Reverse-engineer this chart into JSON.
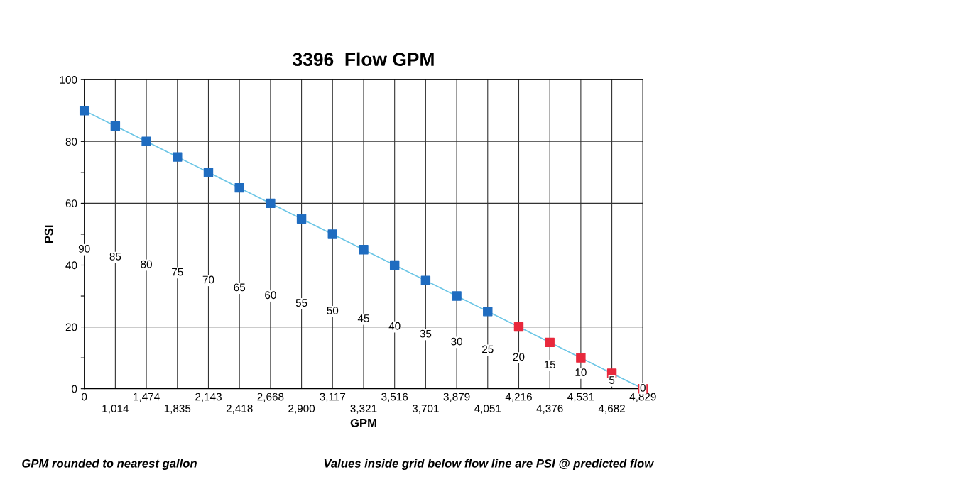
{
  "chart_data": {
    "type": "line",
    "title": "3396  Flow GPM",
    "xlabel": "GPM",
    "ylabel": "PSI",
    "categories": [
      "0",
      "1,014",
      "1,474",
      "1,835",
      "2,143",
      "2,418",
      "2,668",
      "2,900",
      "3,117",
      "3,321",
      "3,516",
      "3,701",
      "3,879",
      "4,051",
      "4,216",
      "4,376",
      "4,531",
      "4,682",
      "4,829"
    ],
    "series": [
      {
        "color": "#6cc6e6",
        "values": [
          90,
          85,
          80,
          75,
          70,
          65,
          60,
          55,
          50,
          45,
          40,
          35,
          30,
          25,
          20,
          15,
          10,
          5,
          0
        ],
        "colors": [
          "#1f6cc0",
          "#1f6cc0",
          "#1f6cc0",
          "#1f6cc0",
          "#1f6cc0",
          "#1f6cc0",
          "#1f6cc0",
          "#1f6cc0",
          "#1f6cc0",
          "#1f6cc0",
          "#1f6cc0",
          "#1f6cc0",
          "#1f6cc0",
          "#1f6cc0",
          "#e8283c",
          "#e8283c",
          "#e8283c",
          "#e8283c",
          "#e8283c"
        ]
      }
    ],
    "ylim": [
      0,
      100
    ],
    "yticks": [
      0,
      {
        "value": 10,
        "label": null
      },
      20,
      {
        "value": 30,
        "label": null
      },
      40,
      {
        "value": 50,
        "label": null
      },
      60,
      {
        "value": 70,
        "label": null
      },
      80,
      {
        "value": 90,
        "label": null
      },
      100
    ],
    "grid": true,
    "marker": "square",
    "line_style": "solid",
    "annotations": [
      "GPM rounded to nearest gallon",
      "Values inside grid below flow line are PSI @ predicted flow",
      {
        "text": "90",
        "x": "0",
        "y": 45
      },
      {
        "text": "85",
        "x": "1,014",
        "y": 42.5
      },
      {
        "text": "80",
        "x": "1,474",
        "y": 40
      },
      {
        "text": "75",
        "x": "1,835",
        "y": 37.5
      },
      {
        "text": "70",
        "x": "2,143",
        "y": 35
      },
      {
        "text": "65",
        "x": "2,418",
        "y": 32.5
      },
      {
        "text": "60",
        "x": "2,668",
        "y": 30
      },
      {
        "text": "55",
        "x": "2,900",
        "y": 27.5
      },
      {
        "text": "50",
        "x": "3,117",
        "y": 25
      },
      {
        "text": "45",
        "x": "3,321",
        "y": 22.5
      },
      {
        "text": "40",
        "x": "3,516",
        "y": 20
      },
      {
        "text": "35",
        "x": "3,701",
        "y": 17.5
      },
      {
        "text": "30",
        "x": "3,879",
        "y": 15
      },
      {
        "text": "25",
        "x": "4,051",
        "y": 12.5
      },
      {
        "text": "20",
        "x": "4,216",
        "y": 10
      },
      {
        "text": "15",
        "x": "4,376",
        "y": 7.5
      },
      {
        "text": "10",
        "x": "4,531",
        "y": 5
      },
      {
        "text": "5",
        "x": "4,682",
        "y": 2.5
      },
      {
        "text": "0",
        "x": "4,829",
        "y": 0
      }
    ]
  }
}
